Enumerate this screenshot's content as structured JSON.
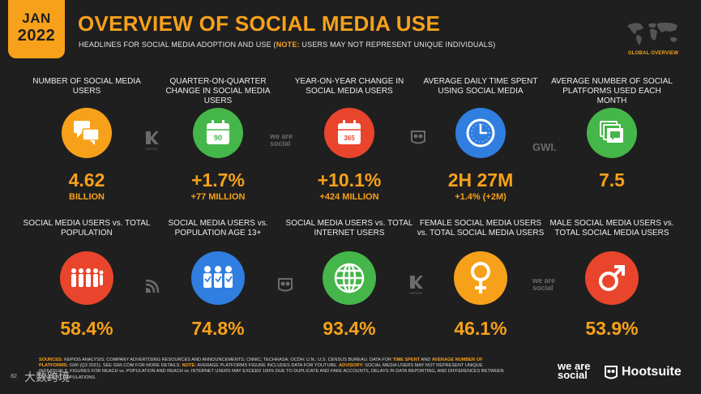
{
  "badge": {
    "month": "JAN",
    "year": "2022"
  },
  "header": {
    "title": "OVERVIEW OF SOCIAL MEDIA USE",
    "subtitle_pre": "HEADLINES FOR SOCIAL MEDIA ADOPTION AND USE (",
    "subtitle_note": "NOTE:",
    "subtitle_post": " USERS MAY NOT REPRESENT UNIQUE INDIVIDUALS)"
  },
  "map": {
    "label": "GLOBAL OVERVIEW"
  },
  "row1": [
    {
      "label": "NUMBER OF SOCIAL MEDIA USERS",
      "value": "4.62",
      "sub": "BILLION",
      "icon": "chat-bubbles-icon",
      "color": "#f7a11a"
    },
    {
      "label": "QUARTER-ON-QUARTER CHANGE IN SOCIAL MEDIA USERS",
      "value": "+1.7%",
      "sub": "+77 MILLION",
      "icon": "calendar-90-icon",
      "icon_text": "90",
      "color": "#45b649"
    },
    {
      "label": "YEAR-ON-YEAR CHANGE IN SOCIAL MEDIA USERS",
      "value": "+10.1%",
      "sub": "+424 MILLION",
      "icon": "calendar-365-icon",
      "icon_text": "365",
      "color": "#e8452c"
    },
    {
      "label": "AVERAGE DAILY TIME SPENT USING SOCIAL MEDIA",
      "value": "2H 27M",
      "sub": "+1.4% (+2M)",
      "icon": "clock-icon",
      "color": "#2f7ee0"
    },
    {
      "label": "AVERAGE NUMBER OF SOCIAL PLATFORMS USED EACH MONTH",
      "value": "7.5",
      "sub": "",
      "icon": "stacked-chat-icon",
      "color": "#45b649"
    }
  ],
  "row2": [
    {
      "label": "SOCIAL MEDIA USERS vs. TOTAL POPULATION",
      "value": "58.4%",
      "icon": "people-group-icon",
      "color": "#e8452c"
    },
    {
      "label": "SOCIAL MEDIA USERS vs. POPULATION AGE 13+",
      "value": "74.8%",
      "icon": "people-checked-icon",
      "color": "#2f7ee0"
    },
    {
      "label": "SOCIAL MEDIA USERS vs. TOTAL INTERNET USERS",
      "value": "93.4%",
      "icon": "globe-icon",
      "color": "#45b649"
    },
    {
      "label": "FEMALE SOCIAL MEDIA USERS vs. TOTAL SOCIAL MEDIA USERS",
      "value": "46.1%",
      "icon": "female-symbol-icon",
      "color": "#f7a11a"
    },
    {
      "label": "MALE SOCIAL MEDIA USERS vs. TOTAL SOCIAL MEDIA USERS",
      "value": "53.9%",
      "icon": "male-symbol-icon",
      "color": "#e8452c"
    }
  ],
  "watermarks": {
    "kepios": "KEPIOS",
    "we_are_social": "we are social",
    "gwi": "GWI."
  },
  "footer": {
    "sources_label": "SOURCES:",
    "line1": " KEPIOS ANALYSIS; COMPANY ADVERTISING RESOURCES AND ANNOUNCEMENTS; CNNIC; TECHRASA; OCDH; U.N.; U.S. CENSUS BUREAU. DATA FOR ",
    "time_spent": "TIME SPENT",
    "and": " AND ",
    "avg_platforms": "AVERAGE NUMBER OF",
    "platforms_label": "PLATFORMS:",
    "line2": " GWI (Q3 2021). SEE GWI.COM FOR MORE DETAILS. ",
    "note_label": "NOTE:",
    "line2b": " AVERAGE PLATFORMS FIGURE INCLUDES DATA FOR YOUTUBE. ",
    "advisory_label": "ADVISORY:",
    "line2c": " SOCIAL MEDIA USERS MAY NOT REPRESENT UNIQUE",
    "line3": "INDIVIDUALS. FIGURES FOR REACH vs. POPULATION AND REACH vs. INTERNET USERS MAY EXCEED 100% DUE TO DUPLICATE AND FAKE ACCOUNTS, DELAYS IN DATA REPORTING, AND DIFFERENCES BETWEEN",
    "line4": "RESIDENT POPULATIONS."
  },
  "brands": {
    "we_are_social": "we are social",
    "hootsuite": "Hootsuite"
  },
  "page_number": "82",
  "cn_watermark": "大数跨境"
}
